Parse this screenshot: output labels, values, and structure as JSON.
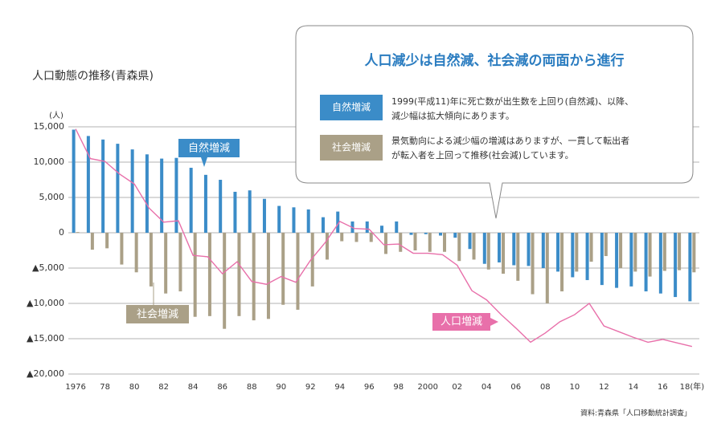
{
  "chart_data": {
    "type": "bar_line",
    "title": "人口動態の推移(青森県)",
    "y_unit": "(人)",
    "source": "資料:青森県「人口移動統計調査」",
    "categories": [
      "1976",
      null,
      "78",
      null,
      "80",
      null,
      "82",
      null,
      "84",
      null,
      "86",
      null,
      "88",
      null,
      "90",
      null,
      "92",
      null,
      "94",
      null,
      "96",
      null,
      "98",
      null,
      "2000",
      null,
      "02",
      null,
      "04",
      null,
      "06",
      null,
      "08",
      null,
      "10",
      null,
      "12",
      null,
      "14",
      null,
      "16",
      null,
      "18(年)"
    ],
    "series": [
      {
        "name": "自然増減",
        "type": "bar",
        "color": "#3b8cc8",
        "values": [
          14600,
          13700,
          13200,
          12600,
          11800,
          11100,
          10500,
          10600,
          9200,
          8200,
          7500,
          5800,
          6000,
          4800,
          3800,
          3600,
          3300,
          2200,
          3000,
          1600,
          1600,
          1000,
          1600,
          -300,
          -200,
          -400,
          -700,
          -2300,
          -4400,
          -4200,
          -4600,
          -4700,
          -5000,
          -5500,
          -6300,
          -6700,
          -7400,
          -7800,
          -7600,
          -8300,
          -8600,
          -9100,
          -9700
        ]
      },
      {
        "name": "社会増減",
        "type": "bar",
        "color": "#aaa087",
        "values": [
          100,
          -2400,
          -2200,
          -4500,
          -5600,
          -7600,
          -8600,
          -8300,
          -11900,
          -11800,
          -13600,
          -11800,
          -12400,
          -12200,
          -10200,
          -10900,
          -7600,
          -3800,
          -1200,
          -1300,
          -1300,
          -3000,
          -2700,
          -2500,
          -2700,
          -2700,
          -4000,
          -3800,
          -5200,
          -5800,
          -6800,
          -8700,
          -10000,
          -8300,
          -5500,
          -4100,
          -3300,
          -5000,
          -5500,
          -6200,
          -5400,
          -5300,
          -5600
        ]
      },
      {
        "name": "人口増減",
        "type": "line",
        "color": "#e870aa",
        "values": [
          14700,
          10500,
          10100,
          8300,
          6900,
          3500,
          1500,
          1700,
          -3200,
          -3400,
          -5800,
          -4100,
          -6900,
          -7300,
          -6200,
          -7000,
          -3900,
          -1400,
          1600,
          600,
          500,
          -1700,
          -1600,
          -2900,
          -2900,
          -3100,
          -4600,
          -8200,
          -9500,
          -11600,
          -13500,
          -15500,
          -14200,
          -12600,
          -11600,
          -10000,
          -13200,
          -14000,
          -14800,
          -15500,
          -15100,
          -15600,
          -16100
        ]
      }
    ],
    "ylim": [
      -20000,
      15000
    ],
    "yticks": [
      {
        "value": 15000,
        "label": "15,000"
      },
      {
        "value": 10000,
        "label": "10,000"
      },
      {
        "value": 5000,
        "label": "5,000"
      },
      0,
      {
        "value": -5000,
        "label": "▲5,000"
      },
      {
        "value": -10000,
        "label": "▲10,000"
      },
      {
        "value": -15000,
        "label": "▲15,000"
      },
      {
        "value": -20000,
        "label": "▲20,000"
      }
    ],
    "grid": true,
    "callout": {
      "title": "人口減少は自然減、社会減の両面から進行",
      "notes": [
        [
          "1999(平成11)年に死亡数が出生数を上回り(自然減)、以降、",
          "減少幅は拡大傾向にあります。"
        ],
        [
          "景気動向による減少幅の増減はありますが、一貫して転出者",
          "が転入者を上回って推移(社会減)しています。"
        ]
      ]
    }
  }
}
